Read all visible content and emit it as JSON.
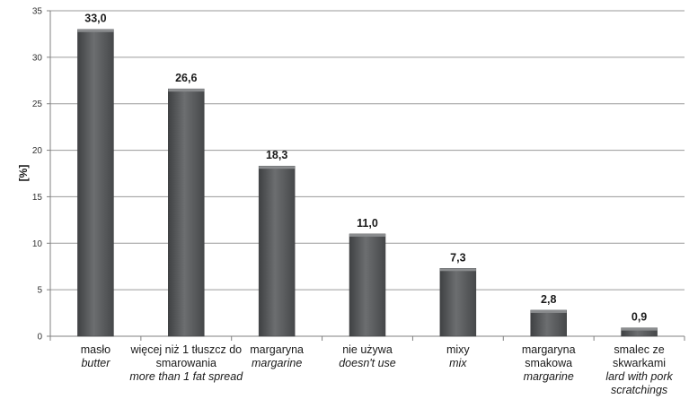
{
  "chart_data": {
    "type": "bar",
    "ylabel": "[%]",
    "ylim": [
      0,
      35
    ],
    "yticks": [
      0,
      5,
      10,
      15,
      20,
      25,
      30,
      35
    ],
    "grid": true,
    "bar_color": "#5a5c5e",
    "categories": [
      {
        "pl": "masło",
        "en": "butter"
      },
      {
        "pl": "więcej niż 1 tłuszcz do smarowania",
        "en": "more than 1 fat spread"
      },
      {
        "pl": "margaryna",
        "en": "margarine"
      },
      {
        "pl": "nie używa",
        "en": "doesn't use"
      },
      {
        "pl": "mixy",
        "en": "mix"
      },
      {
        "pl": "margaryna smakowa",
        "en": "margarine"
      },
      {
        "pl": "smalec ze skwarkami",
        "en": "lard with pork scratchings"
      }
    ],
    "values": [
      33.0,
      26.6,
      18.3,
      11.0,
      7.3,
      2.8,
      0.9
    ],
    "value_labels": [
      "33,0",
      "26,6",
      "18,3",
      "11,0",
      "7,3",
      "2,8",
      "0,9"
    ]
  }
}
